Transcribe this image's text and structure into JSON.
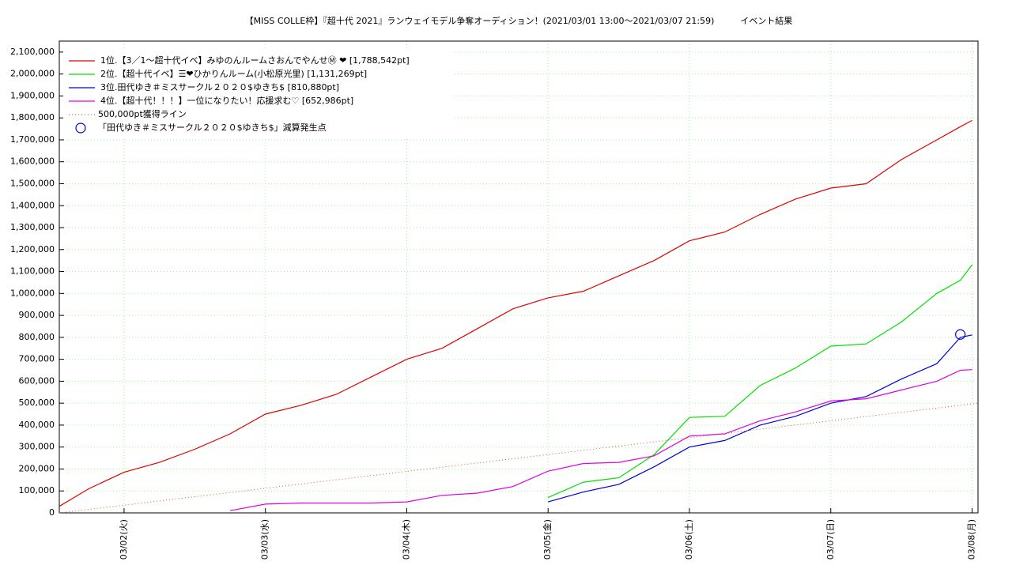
{
  "chart_data": {
    "type": "line",
    "title": "【MISS COLLE枠】『超十代 2021』ランウェイモデル争奪オーディション！(2021/03/01 13:00〜2021/03/07 21:59)　　　イベント結果",
    "x": [
      13,
      18,
      24,
      30,
      36,
      42,
      48,
      54,
      60,
      66,
      72,
      78,
      84,
      90,
      96,
      102,
      108,
      114,
      120,
      126,
      132,
      138,
      144,
      150,
      156,
      162,
      166,
      168
    ],
    "xlim": [
      13,
      169
    ],
    "xticks": [
      {
        "value": 24,
        "label": "03/02(火)"
      },
      {
        "value": 48,
        "label": "03/03(水)"
      },
      {
        "value": 72,
        "label": "03/04(木)"
      },
      {
        "value": 96,
        "label": "03/05(金)"
      },
      {
        "value": 120,
        "label": "03/06(土)"
      },
      {
        "value": 144,
        "label": "03/07(日)"
      },
      {
        "value": 168,
        "label": "03/08(月)"
      }
    ],
    "ylim": [
      0,
      2150000
    ],
    "yticks": [
      0,
      {
        "value": 100000,
        "label": "100,000"
      },
      {
        "value": 200000,
        "label": "200,000"
      },
      {
        "value": 300000,
        "label": "300,000"
      },
      {
        "value": 400000,
        "label": "400,000"
      },
      {
        "value": 500000,
        "label": "500,000"
      },
      {
        "value": 600000,
        "label": "600,000"
      },
      {
        "value": 700000,
        "label": "700,000"
      },
      {
        "value": 800000,
        "label": "800,000"
      },
      {
        "value": 900000,
        "label": "900,000"
      },
      {
        "value": 1000000,
        "label": "1,000,000"
      },
      {
        "value": 1100000,
        "label": "1,100,000"
      },
      {
        "value": 1200000,
        "label": "1,200,000"
      },
      {
        "value": 1300000,
        "label": "1,300,000"
      },
      {
        "value": 1400000,
        "label": "1,400,000"
      },
      {
        "value": 1500000,
        "label": "1,500,000"
      },
      {
        "value": 1600000,
        "label": "1,600,000"
      },
      {
        "value": 1700000,
        "label": "1,700,000"
      },
      {
        "value": 1800000,
        "label": "1,800,000"
      },
      {
        "value": 1900000,
        "label": "1,900,000"
      },
      {
        "value": 2000000,
        "label": "2,000,000"
      },
      {
        "value": 2100000,
        "label": "2,100,000"
      }
    ],
    "grid": true,
    "legend": "top-left",
    "series": [
      {
        "name": "1位.【3／1〜超十代イベ】みゆのんルームさおんでやんせⓂ ❤ [1,788,542pt]",
        "color": "#e00000",
        "values": [
          30000,
          110000,
          185000,
          230000,
          290000,
          360000,
          450000,
          490000,
          540000,
          620000,
          700000,
          750000,
          840000,
          930000,
          980000,
          1010000,
          1080000,
          1150000,
          1240000,
          1280000,
          1360000,
          1430000,
          1480000,
          1500000,
          1610000,
          1700000,
          1760000,
          1788542
        ]
      },
      {
        "name": "2位.【超十代イベ】☰❤ひかりんルーム(小松原光里) [1,131,269pt]",
        "color": "#00e000",
        "values": [
          null,
          null,
          null,
          null,
          null,
          null,
          null,
          null,
          null,
          null,
          null,
          null,
          null,
          null,
          70000,
          140000,
          160000,
          265000,
          435000,
          440000,
          580000,
          660000,
          760000,
          770000,
          870000,
          1000000,
          1060000,
          1131269
        ]
      },
      {
        "name": "3位.田代ゆき＃ミスサークル２０２０$ゆきち$ [810,880pt]",
        "color": "#0000e0",
        "values": [
          null,
          null,
          null,
          null,
          null,
          null,
          null,
          null,
          null,
          null,
          null,
          null,
          null,
          null,
          50000,
          95000,
          130000,
          210000,
          300000,
          330000,
          400000,
          440000,
          500000,
          530000,
          610000,
          680000,
          800000,
          810880
        ]
      },
      {
        "name": "4位.【超十代！！！】一位になりたい！応援求む♡ [652,986pt]",
        "color": "#e000e0",
        "values": [
          null,
          null,
          null,
          null,
          null,
          10000,
          40000,
          45000,
          45000,
          45000,
          50000,
          80000,
          90000,
          120000,
          190000,
          225000,
          230000,
          260000,
          350000,
          360000,
          420000,
          460000,
          510000,
          520000,
          560000,
          600000,
          650000,
          652986
        ]
      },
      {
        "name": "500,000pt獲得ライン",
        "color": "#c06040",
        "style": "dotted",
        "x": [
          13,
          169
        ],
        "values": [
          0,
          500000
        ]
      },
      {
        "name": "「田代ゆき＃ミスサークル２０２０$ゆきち$」減算発生点",
        "color": "#0000e0",
        "style": "points",
        "x": [
          166
        ],
        "values": [
          813000
        ]
      }
    ]
  }
}
